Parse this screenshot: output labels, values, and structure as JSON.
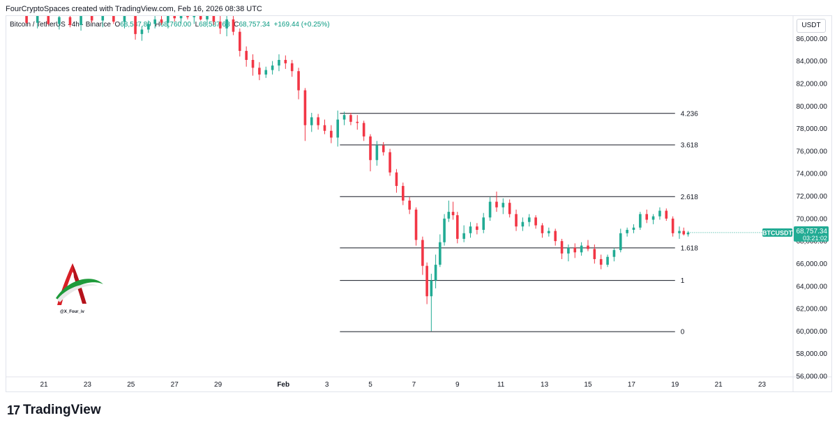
{
  "header": {
    "credit": "FourCryptoSpaces created with TradingView.com, Feb 16, 2026 08:38 UTC",
    "symbol": "Bitcoin / TetherUS · 4h · Binance",
    "open_label": "O",
    "open_value": "68,587.89",
    "high_label": "H",
    "high_value": "68,760.00",
    "low_label": "L",
    "low_value": "68,587.63",
    "close_label": "C",
    "close_value": "68,757.34",
    "change": "+169.44 (+0.25%)",
    "currency": "USDT"
  },
  "watermark": {
    "handle": "@X_Four_iv"
  },
  "footer": {
    "brand": "TradingView",
    "brand_mark": "17"
  },
  "colors": {
    "up": "#22ab94",
    "down": "#f23645",
    "fib_line": "#131722",
    "price_tag": "#22ab94"
  },
  "chart_data": {
    "type": "candlestick",
    "title": "Bitcoin / TetherUS · 4h · Binance",
    "ylim": [
      56000,
      88000
    ],
    "y_ticks": [
      "86,000.00",
      "84,000.00",
      "82,000.00",
      "80,000.00",
      "78,000.00",
      "76,000.00",
      "74,000.00",
      "72,000.00",
      "70,000.00",
      "68,000.00",
      "66,000.00",
      "64,000.00",
      "62,000.00",
      "60,000.00",
      "58,000.00",
      "56,000.00"
    ],
    "y_tick_values": [
      86000,
      84000,
      82000,
      80000,
      78000,
      76000,
      74000,
      72000,
      70000,
      68000,
      66000,
      64000,
      62000,
      60000,
      58000,
      56000
    ],
    "x_ticks": [
      {
        "label": "21",
        "day": 21
      },
      {
        "label": "23",
        "day": 23
      },
      {
        "label": "25",
        "day": 25
      },
      {
        "label": "27",
        "day": 27
      },
      {
        "label": "29",
        "day": 29
      },
      {
        "label": "Feb",
        "day": 32
      },
      {
        "label": "3",
        "day": 34
      },
      {
        "label": "5",
        "day": 36
      },
      {
        "label": "7",
        "day": 38
      },
      {
        "label": "9",
        "day": 40
      },
      {
        "label": "11",
        "day": 42
      },
      {
        "label": "13",
        "day": 44
      },
      {
        "label": "15",
        "day": 46
      },
      {
        "label": "17",
        "day": 48
      },
      {
        "label": "19",
        "day": 50
      },
      {
        "label": "21",
        "day": 52
      },
      {
        "label": "23",
        "day": 54
      }
    ],
    "x_tick_bold": [
      "Feb"
    ],
    "fib_levels": [
      {
        "label": "4.236",
        "price": 79350
      },
      {
        "label": "3.618",
        "price": 76550
      },
      {
        "label": "2.618",
        "price": 71950
      },
      {
        "label": "1.618",
        "price": 67400
      },
      {
        "label": "1",
        "price": 64500
      },
      {
        "label": "0",
        "price": 59950
      }
    ],
    "fib_start_day": 34.6,
    "fib_end_day": 50,
    "last_price": {
      "symbol": "BTCUSDT",
      "price": "68,757.34",
      "countdown": "03:21:02",
      "value": 68757.34
    },
    "candles": [
      [
        20.2,
        88000,
        88500,
        87300,
        87400
      ],
      [
        20.7,
        87400,
        88200,
        86900,
        88000
      ],
      [
        21.2,
        88000,
        88300,
        87200,
        87300
      ],
      [
        21.7,
        87300,
        88100,
        86800,
        87900
      ],
      [
        22.2,
        87900,
        88200,
        87000,
        87200
      ],
      [
        22.7,
        87200,
        88300,
        86700,
        88000
      ],
      [
        23.2,
        88000,
        88400,
        87400,
        87600
      ],
      [
        23.7,
        87600,
        88300,
        87000,
        88000
      ],
      [
        24.2,
        88000,
        88500,
        87300,
        87500
      ],
      [
        24.7,
        87500,
        88300,
        86900,
        88000
      ],
      [
        25.2,
        88000,
        88100,
        85900,
        86400
      ],
      [
        25.5,
        86400,
        87100,
        85800,
        86800
      ],
      [
        25.8,
        86800,
        87600,
        86500,
        87300
      ],
      [
        26.1,
        87300,
        88000,
        86900,
        87700
      ],
      [
        26.4,
        87700,
        88300,
        87200,
        87400
      ],
      [
        26.7,
        87400,
        88200,
        86900,
        88000
      ],
      [
        27.0,
        88000,
        88500,
        87500,
        87800
      ],
      [
        27.3,
        87800,
        88400,
        87300,
        88100
      ],
      [
        27.6,
        88100,
        88600,
        87700,
        87900
      ],
      [
        27.9,
        87900,
        88400,
        87300,
        88000
      ],
      [
        28.2,
        88000,
        88500,
        87600,
        87700
      ],
      [
        28.5,
        87700,
        88200,
        87200,
        88000
      ],
      [
        28.8,
        88000,
        88400,
        87200,
        87500
      ],
      [
        29.1,
        87500,
        88100,
        86400,
        86900
      ],
      [
        29.4,
        86900,
        88000,
        86200,
        87700
      ],
      [
        29.7,
        87700,
        88100,
        86300,
        86600
      ],
      [
        30.0,
        86600,
        86900,
        84400,
        84900
      ],
      [
        30.3,
        84900,
        85300,
        83500,
        84100
      ],
      [
        30.6,
        84100,
        84600,
        82700,
        83400
      ],
      [
        30.9,
        83400,
        83900,
        82300,
        82800
      ],
      [
        31.2,
        82800,
        83500,
        82500,
        83200
      ],
      [
        31.5,
        83200,
        84000,
        82800,
        83600
      ],
      [
        31.8,
        83600,
        84600,
        83100,
        84100
      ],
      [
        32.1,
        84100,
        84500,
        83300,
        83800
      ],
      [
        32.4,
        83800,
        84100,
        82600,
        83100
      ],
      [
        32.7,
        83100,
        83400,
        80600,
        81400
      ],
      [
        33.0,
        81400,
        81600,
        76900,
        78300
      ],
      [
        33.3,
        78300,
        79400,
        77700,
        79000
      ],
      [
        33.6,
        79000,
        79300,
        77900,
        78300
      ],
      [
        33.9,
        78300,
        78800,
        77500,
        77800
      ],
      [
        34.2,
        77800,
        78300,
        76700,
        77200
      ],
      [
        34.5,
        77200,
        79600,
        76400,
        78800
      ],
      [
        34.8,
        78800,
        79500,
        78300,
        79200
      ],
      [
        35.1,
        79200,
        79400,
        78300,
        78600
      ],
      [
        35.4,
        78600,
        79200,
        77900,
        78500
      ],
      [
        35.7,
        78500,
        78700,
        76900,
        77300
      ],
      [
        36.0,
        77300,
        77500,
        74200,
        75200
      ],
      [
        36.3,
        75200,
        76900,
        74700,
        76500
      ],
      [
        36.6,
        76500,
        76800,
        75600,
        75900
      ],
      [
        36.9,
        75900,
        76200,
        73800,
        74100
      ],
      [
        37.2,
        74100,
        74400,
        72300,
        72900
      ],
      [
        37.5,
        72900,
        73200,
        71200,
        71600
      ],
      [
        37.8,
        71600,
        71900,
        70400,
        70800
      ],
      [
        38.1,
        70800,
        71000,
        67600,
        68100
      ],
      [
        38.4,
        68100,
        68400,
        65000,
        65800
      ],
      [
        38.6,
        65800,
        66100,
        62400,
        63100
      ],
      [
        38.8,
        63100,
        65100,
        60000,
        64500
      ],
      [
        39.0,
        64500,
        66800,
        63800,
        65900
      ],
      [
        39.2,
        65900,
        68600,
        65700,
        67900
      ],
      [
        39.4,
        67900,
        70400,
        67600,
        70000
      ],
      [
        39.6,
        70000,
        71600,
        69700,
        70600
      ],
      [
        39.8,
        70600,
        71500,
        69900,
        70300
      ],
      [
        40.0,
        70300,
        70600,
        67800,
        68200
      ],
      [
        40.3,
        68200,
        69400,
        67900,
        68700
      ],
      [
        40.6,
        68700,
        69700,
        68300,
        69300
      ],
      [
        40.9,
        69300,
        69600,
        68600,
        69000
      ],
      [
        41.2,
        69000,
        70500,
        68700,
        70100
      ],
      [
        41.5,
        70100,
        71900,
        69800,
        71500
      ],
      [
        41.8,
        71500,
        72400,
        70600,
        71000
      ],
      [
        42.1,
        71000,
        71800,
        70400,
        71400
      ],
      [
        42.4,
        71400,
        71700,
        70100,
        70400
      ],
      [
        42.7,
        70400,
        70800,
        68900,
        69300
      ],
      [
        43.0,
        69300,
        70100,
        68900,
        69700
      ],
      [
        43.3,
        69700,
        70400,
        69300,
        70100
      ],
      [
        43.6,
        70100,
        70300,
        69100,
        69400
      ],
      [
        43.9,
        69400,
        69600,
        68300,
        68700
      ],
      [
        44.2,
        68700,
        69200,
        68400,
        68900
      ],
      [
        44.5,
        68900,
        69100,
        67600,
        68000
      ],
      [
        44.8,
        68000,
        68200,
        66400,
        66900
      ],
      [
        45.1,
        66900,
        67700,
        66200,
        67400
      ],
      [
        45.4,
        67400,
        67800,
        66500,
        67000
      ],
      [
        45.7,
        67000,
        67900,
        66700,
        67600
      ],
      [
        46.0,
        67600,
        68100,
        67100,
        67300
      ],
      [
        46.3,
        67300,
        67700,
        66000,
        66400
      ],
      [
        46.6,
        66400,
        66800,
        65500,
        65900
      ],
      [
        46.9,
        65900,
        66800,
        65700,
        66600
      ],
      [
        47.2,
        66600,
        67400,
        66200,
        67200
      ],
      [
        47.5,
        67200,
        69100,
        67000,
        68700
      ],
      [
        47.8,
        68700,
        69200,
        68400,
        69000
      ],
      [
        48.1,
        69000,
        69500,
        68700,
        69200
      ],
      [
        48.4,
        69200,
        70600,
        69000,
        70400
      ],
      [
        48.7,
        70400,
        70800,
        69600,
        69900
      ],
      [
        49.0,
        69900,
        70400,
        69500,
        70200
      ],
      [
        49.3,
        70200,
        71000,
        69900,
        70700
      ],
      [
        49.6,
        70700,
        70900,
        69800,
        70000
      ],
      [
        49.9,
        70000,
        70200,
        68400,
        68700
      ],
      [
        50.2,
        68700,
        69300,
        68200,
        68900
      ],
      [
        50.4,
        68900,
        69200,
        68500,
        68600
      ],
      [
        50.6,
        68600,
        68900,
        68400,
        68757
      ]
    ]
  }
}
